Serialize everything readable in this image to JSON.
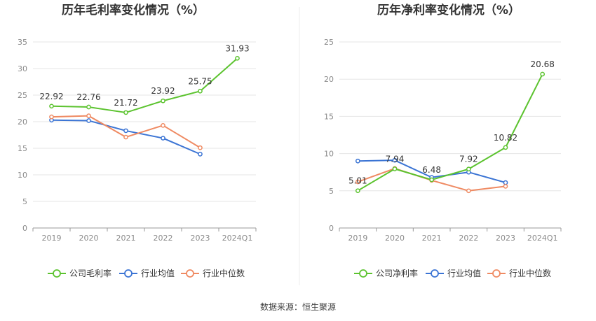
{
  "colors": {
    "company": "#5cc32f",
    "industry_avg": "#3b74d4",
    "industry_median": "#ef8a62",
    "grid": "#e6e6e6",
    "axis": "#999999"
  },
  "source_text": "数据来源：恒生聚源",
  "chart_data": [
    {
      "type": "line",
      "title": "历年毛利率变化情况（%）",
      "categories": [
        "2019",
        "2020",
        "2021",
        "2022",
        "2023",
        "2024Q1"
      ],
      "ylim": [
        0,
        35
      ],
      "yticks": [
        0,
        5,
        10,
        15,
        20,
        25,
        30,
        35
      ],
      "grid": true,
      "legend_position": "bottom",
      "series": [
        {
          "name": "公司毛利率",
          "color": "#5cc32f",
          "labeled": true,
          "values": [
            22.92,
            22.76,
            21.72,
            23.92,
            25.75,
            31.93
          ],
          "labels": [
            "22.92",
            "22.76",
            "21.72",
            "23.92",
            "25.75",
            "31.93"
          ]
        },
        {
          "name": "行业均值",
          "color": "#3b74d4",
          "labeled": false,
          "values": [
            20.3,
            20.2,
            18.3,
            16.9,
            13.9,
            null
          ]
        },
        {
          "name": "行业中位数",
          "color": "#ef8a62",
          "labeled": false,
          "values": [
            20.9,
            21.1,
            17.1,
            19.3,
            15.1,
            null
          ]
        }
      ]
    },
    {
      "type": "line",
      "title": "历年净利率变化情况（%）",
      "categories": [
        "2019",
        "2020",
        "2021",
        "2022",
        "2023",
        "2024Q1"
      ],
      "ylim": [
        0,
        25
      ],
      "yticks": [
        0,
        5,
        10,
        15,
        20,
        25
      ],
      "grid": true,
      "legend_position": "bottom",
      "series": [
        {
          "name": "公司净利率",
          "color": "#5cc32f",
          "labeled": true,
          "values": [
            5.01,
            7.94,
            6.48,
            7.92,
            10.82,
            20.68
          ],
          "labels": [
            "5.01",
            "7.94",
            "6.48",
            "7.92",
            "10.82",
            "20.68"
          ]
        },
        {
          "name": "行业均值",
          "color": "#3b74d4",
          "labeled": false,
          "values": [
            9.0,
            9.1,
            6.8,
            7.5,
            6.1,
            null
          ]
        },
        {
          "name": "行业中位数",
          "color": "#ef8a62",
          "labeled": false,
          "values": [
            6.2,
            8.0,
            6.4,
            5.0,
            5.6,
            null
          ]
        }
      ]
    }
  ]
}
